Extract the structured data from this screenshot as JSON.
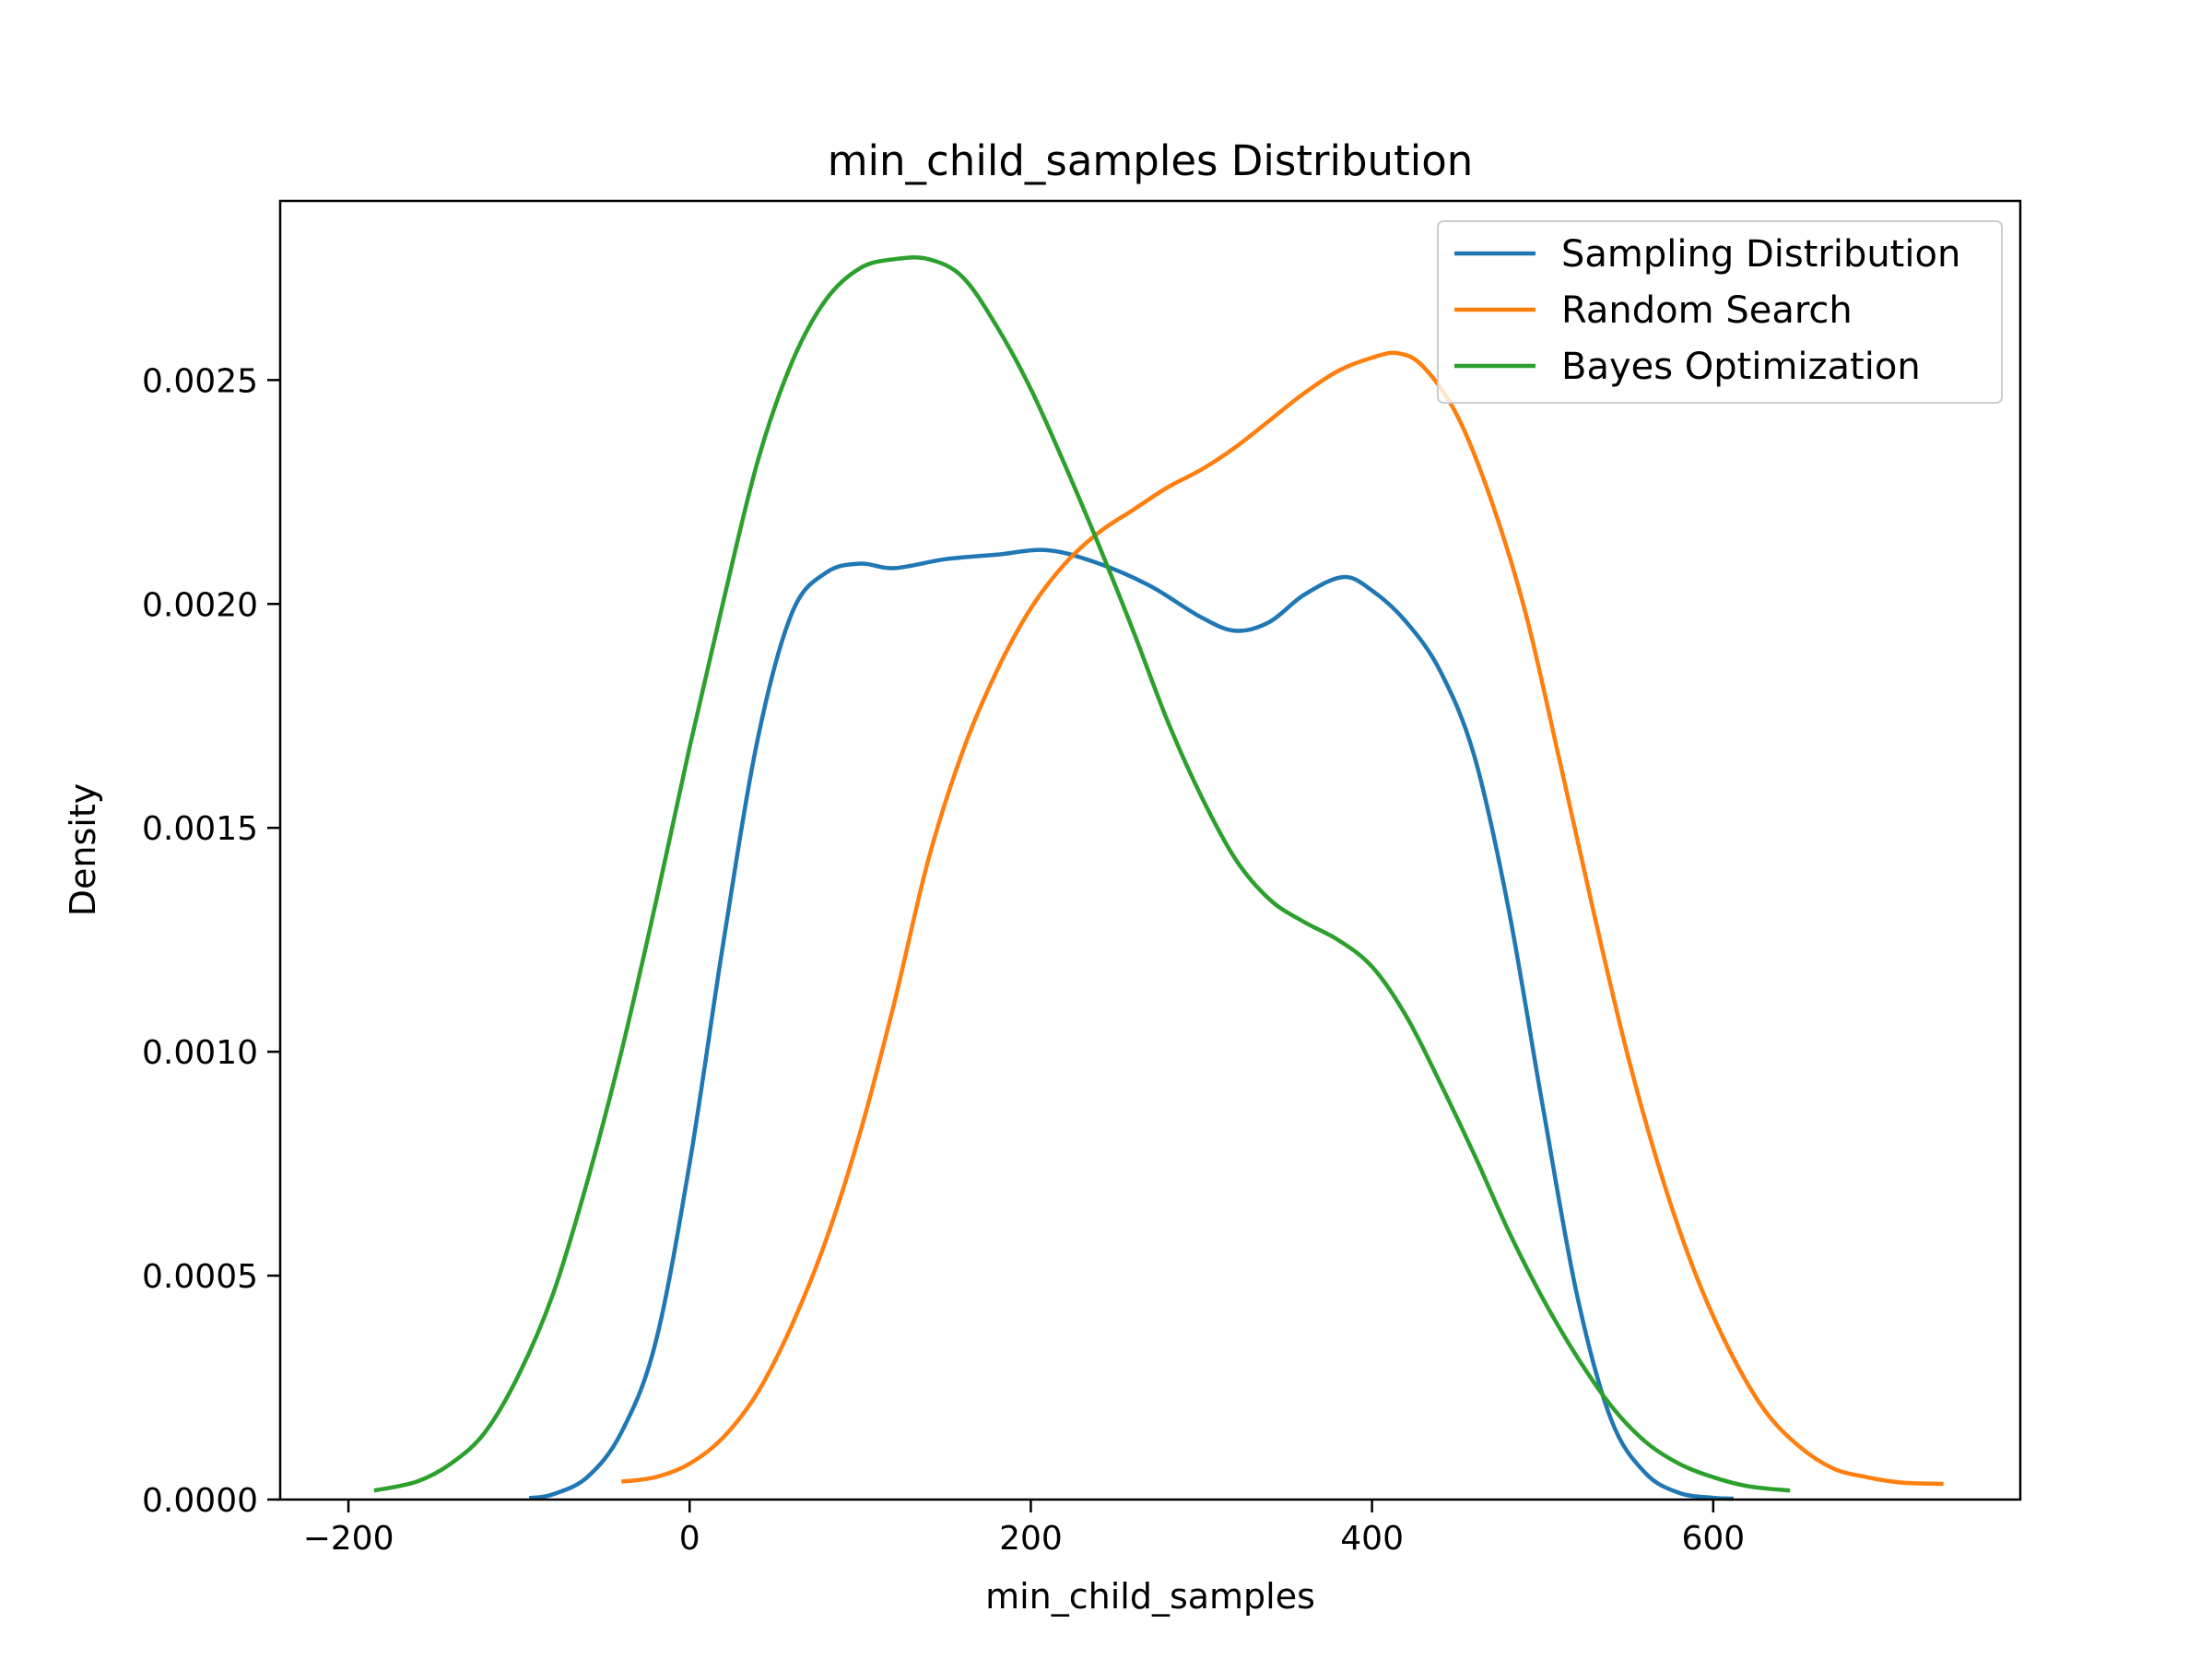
{
  "chart_data": {
    "type": "line",
    "title": "min_child_samples Distribution",
    "xlabel": "min_child_samples",
    "ylabel": "Density",
    "xlim": [
      -240,
      780
    ],
    "ylim": [
      0,
      0.0029
    ],
    "xticks": [
      {
        "value": -200,
        "label": "−200"
      },
      {
        "value": 0,
        "label": "0"
      },
      {
        "value": 200,
        "label": "200"
      },
      {
        "value": 400,
        "label": "400"
      },
      {
        "value": 600,
        "label": "600"
      }
    ],
    "yticks": [
      {
        "value": 0,
        "label": "0.0000"
      },
      {
        "value": 0.0005,
        "label": "0.0005"
      },
      {
        "value": 0.001,
        "label": "0.0010"
      },
      {
        "value": 0.0015,
        "label": "0.0015"
      },
      {
        "value": 0.002,
        "label": "0.0020"
      },
      {
        "value": 0.0025,
        "label": "0.0025"
      }
    ],
    "grid": false,
    "legend_position": "upper right",
    "series": [
      {
        "name": "Sampling Distribution",
        "color": "#1f77b4",
        "points": [
          [
            -94,
            3e-06
          ],
          [
            -80,
            1.2e-05
          ],
          [
            -60,
            5e-05
          ],
          [
            -40,
            0.00015
          ],
          [
            -20,
            0.00035
          ],
          [
            0,
            0.00075
          ],
          [
            20,
            0.00125
          ],
          [
            40,
            0.0017
          ],
          [
            60,
            0.00198
          ],
          [
            80,
            0.00207
          ],
          [
            100,
            0.00209
          ],
          [
            120,
            0.00208
          ],
          [
            150,
            0.0021
          ],
          [
            180,
            0.00211
          ],
          [
            210,
            0.00212
          ],
          [
            240,
            0.00209
          ],
          [
            270,
            0.00204
          ],
          [
            300,
            0.00197
          ],
          [
            320,
            0.00194
          ],
          [
            340,
            0.00196
          ],
          [
            360,
            0.00202
          ],
          [
            383,
            0.00206
          ],
          [
            400,
            0.00203
          ],
          [
            420,
            0.00196
          ],
          [
            440,
            0.00185
          ],
          [
            460,
            0.00166
          ],
          [
            480,
            0.00132
          ],
          [
            500,
            0.00088
          ],
          [
            520,
            0.00046
          ],
          [
            540,
            0.00018
          ],
          [
            560,
            6e-05
          ],
          [
            580,
            1.5e-05
          ],
          [
            600,
            4e-06
          ],
          [
            612,
            2e-06
          ]
        ]
      },
      {
        "name": "Random Search",
        "color": "#ff7f0e",
        "points": [
          [
            -40,
            4e-05
          ],
          [
            -20,
            5e-05
          ],
          [
            0,
            8e-05
          ],
          [
            20,
            0.00014
          ],
          [
            40,
            0.00024
          ],
          [
            60,
            0.00039
          ],
          [
            80,
            0.00058
          ],
          [
            100,
            0.00082
          ],
          [
            120,
            0.00111
          ],
          [
            140,
            0.00143
          ],
          [
            160,
            0.00167
          ],
          [
            180,
            0.00185
          ],
          [
            200,
            0.00199
          ],
          [
            220,
            0.00209
          ],
          [
            240,
            0.00216
          ],
          [
            260,
            0.00221
          ],
          [
            280,
            0.00226
          ],
          [
            300,
            0.0023
          ],
          [
            320,
            0.00235
          ],
          [
            340,
            0.00241
          ],
          [
            360,
            0.00247
          ],
          [
            380,
            0.00252
          ],
          [
            400,
            0.00255
          ],
          [
            415,
            0.00256
          ],
          [
            430,
            0.00253
          ],
          [
            450,
            0.00242
          ],
          [
            470,
            0.00223
          ],
          [
            490,
            0.00198
          ],
          [
            510,
            0.00165
          ],
          [
            530,
            0.00131
          ],
          [
            550,
            0.00099
          ],
          [
            570,
            0.00072
          ],
          [
            590,
            0.0005
          ],
          [
            610,
            0.00033
          ],
          [
            630,
            0.0002
          ],
          [
            650,
            0.00012
          ],
          [
            670,
            7e-05
          ],
          [
            690,
            5e-05
          ],
          [
            710,
            3.8e-05
          ],
          [
            735,
            3.5e-05
          ]
        ]
      },
      {
        "name": "Bayes Optimization",
        "color": "#2ca02c",
        "points": [
          [
            -185,
            2e-05
          ],
          [
            -160,
            4e-05
          ],
          [
            -140,
            8e-05
          ],
          [
            -120,
            0.00015
          ],
          [
            -100,
            0.00028
          ],
          [
            -80,
            0.00046
          ],
          [
            -60,
            0.00071
          ],
          [
            -40,
            0.001
          ],
          [
            -20,
            0.00133
          ],
          [
            0,
            0.00168
          ],
          [
            20,
            0.00201
          ],
          [
            40,
            0.00232
          ],
          [
            60,
            0.00254
          ],
          [
            80,
            0.00268
          ],
          [
            100,
            0.00275
          ],
          [
            120,
            0.00277
          ],
          [
            140,
            0.00277
          ],
          [
            160,
            0.00273
          ],
          [
            180,
            0.00262
          ],
          [
            200,
            0.00248
          ],
          [
            220,
            0.00231
          ],
          [
            240,
            0.00213
          ],
          [
            260,
            0.00194
          ],
          [
            280,
            0.00174
          ],
          [
            300,
            0.00157
          ],
          [
            320,
            0.00143
          ],
          [
            340,
            0.00134
          ],
          [
            360,
            0.00129
          ],
          [
            380,
            0.00125
          ],
          [
            400,
            0.00119
          ],
          [
            420,
            0.00108
          ],
          [
            440,
            0.00093
          ],
          [
            460,
            0.00077
          ],
          [
            480,
            0.0006
          ],
          [
            500,
            0.00045
          ],
          [
            520,
            0.00032
          ],
          [
            540,
            0.00021
          ],
          [
            560,
            0.00013
          ],
          [
            580,
            8e-05
          ],
          [
            600,
            5e-05
          ],
          [
            620,
            3e-05
          ],
          [
            645,
            2e-05
          ]
        ]
      }
    ]
  }
}
